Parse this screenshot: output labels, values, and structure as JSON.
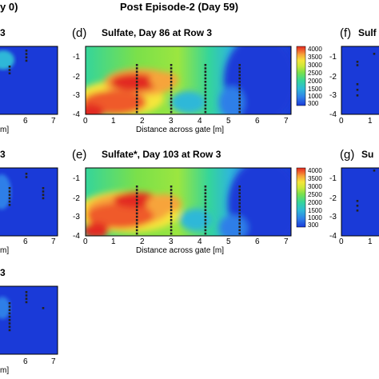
{
  "header": {
    "left": "y 0)",
    "center": "Post Episode-2 (Day 59)"
  },
  "colors": {
    "scale": [
      "#1a3ad8",
      "#2f7fe8",
      "#2fb8d8",
      "#35d59a",
      "#7be04a",
      "#c8e83a",
      "#f5e63a",
      "#f7a43a",
      "#ef5a2c",
      "#e22a20"
    ],
    "marker": "#222222"
  },
  "chart_data": [
    {
      "type": "heatmap",
      "panel": "(d)",
      "title": "Sulfate, Day 86 at Row 3",
      "xlabel": "Distance across gate [m]",
      "ylabel": "",
      "x_ticks": [
        "0",
        "1",
        "2",
        "3",
        "4",
        "5",
        "6",
        "7"
      ],
      "y_ticks": [
        "-1",
        "-2",
        "-3",
        "-4"
      ],
      "xlim": [
        0,
        7.2
      ],
      "ylim": [
        -4,
        -0.5
      ],
      "colorbar": [
        "4000",
        "3500",
        "3000",
        "2500",
        "2000",
        "1500",
        "1000",
        "300"
      ],
      "sample_columns_x": [
        1.8,
        3.0,
        4.2,
        5.4
      ]
    },
    {
      "type": "heatmap",
      "panel": "(e)",
      "title": "Sulfate*, Day 103 at Row 3",
      "xlabel": "Distance across gate [m]",
      "ylabel": "",
      "x_ticks": [
        "0",
        "1",
        "2",
        "3",
        "4",
        "5",
        "6",
        "7"
      ],
      "y_ticks": [
        "-1",
        "-2",
        "-3",
        "-4"
      ],
      "xlim": [
        0,
        7.2
      ],
      "ylim": [
        -4,
        -0.5
      ],
      "colorbar": [
        "4000",
        "3500",
        "3000",
        "2500",
        "2000",
        "1500",
        "1000",
        "300"
      ],
      "sample_columns_x": [
        1.8,
        3.0,
        4.2,
        5.4
      ]
    }
  ],
  "partial_left": {
    "row1_title": "3",
    "row2_title": "3",
    "row3_title": "3",
    "x_ticks": [
      "6",
      "7"
    ],
    "unit_label": "m]"
  },
  "partial_right": {
    "row1_panel": "(f)",
    "row1_title": "Sulf",
    "row2_panel": "(g)",
    "row2_title": "Su",
    "y_ticks": [
      "-1",
      "-2",
      "-3",
      "-4"
    ],
    "x_ticks": [
      "0",
      "1"
    ]
  }
}
